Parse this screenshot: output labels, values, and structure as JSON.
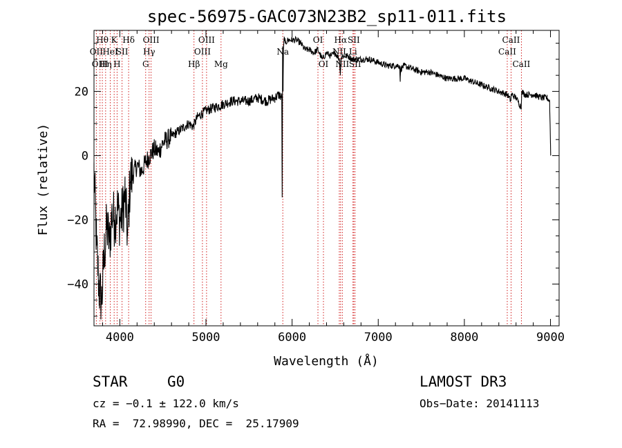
{
  "chart_data": {
    "type": "line",
    "title": "spec-56975-GAC073N23B2_sp11-011.fits",
    "xlabel": "Wavelength (Å)",
    "ylabel": "Flux (relative)",
    "xlim": [
      3700,
      9100
    ],
    "ylim": [
      -53,
      39
    ],
    "xticks": [
      4000,
      5000,
      6000,
      7000,
      8000,
      9000
    ],
    "xtick_labels": [
      "4000",
      "5000",
      "6000",
      "7000",
      "8000",
      "9000"
    ],
    "yticks": [
      -40,
      -20,
      0,
      20
    ],
    "ytick_labels": [
      "−40",
      "−20",
      "0",
      "20"
    ],
    "grid": false,
    "series": [
      {
        "name": "flux",
        "x": [
          3700,
          3730,
          3760,
          3790,
          3820,
          3850,
          3880,
          3910,
          3940,
          3970,
          4000,
          4030,
          4060,
          4090,
          4120,
          4150,
          4200,
          4250,
          4300,
          4350,
          4400,
          4450,
          4500,
          4600,
          4700,
          4800,
          4850,
          4900,
          5000,
          5100,
          5200,
          5300,
          5400,
          5500,
          5600,
          5700,
          5800,
          5850,
          5880,
          5885,
          5890,
          5895,
          5900,
          5910,
          5920,
          5950,
          6000,
          6050,
          6100,
          6150,
          6200,
          6250,
          6300,
          6350,
          6400,
          6450,
          6500,
          6550,
          6560,
          6563,
          6566,
          6580,
          6600,
          6650,
          6700,
          6800,
          6900,
          7000,
          7100,
          7200,
          7250,
          7255,
          7260,
          7300,
          7400,
          7500,
          7600,
          7700,
          7800,
          7900,
          8000,
          8100,
          8200,
          8300,
          8400,
          8500,
          8540,
          8545,
          8550,
          8600,
          8660,
          8665,
          8700,
          8800,
          8900,
          8960,
          8990,
          9000,
          9002
        ],
        "y": [
          -5,
          -28,
          -42,
          -45,
          -30,
          -22,
          -27,
          -18,
          -20,
          -16,
          -20,
          -18,
          -12,
          -25,
          -8,
          -6,
          -3,
          -5,
          -2,
          0,
          2,
          1,
          4,
          6,
          8,
          10,
          9,
          12,
          14,
          15,
          16,
          17,
          17,
          17,
          18,
          17,
          18,
          19,
          18,
          -13,
          34,
          20,
          33,
          37,
          35,
          36,
          36,
          36,
          35,
          33,
          33,
          32,
          33,
          30,
          32,
          31,
          32,
          30,
          25,
          27,
          30,
          31,
          31,
          31,
          30,
          30,
          30,
          29,
          28,
          28,
          28,
          23,
          27,
          28,
          27,
          26,
          26,
          25,
          24,
          24,
          24,
          23,
          22,
          21,
          20,
          19,
          17,
          19,
          19,
          18,
          15,
          20,
          19,
          19,
          18,
          18,
          17,
          4,
          0
        ]
      }
    ],
    "line_groups": [
      {
        "name": "absorption-set",
        "color": "#cc0000",
        "lines": [
          3727,
          3770,
          3797,
          3835,
          3889,
          3934,
          3968,
          4026,
          4102,
          4300,
          4340,
          4363,
          4861,
          4959,
          5007,
          5175,
          5892,
          6300,
          6364,
          6548,
          6563,
          6583,
          6707,
          6716,
          6731,
          8498,
          8542,
          8662
        ]
      }
    ],
    "line_labels": [
      {
        "text": "Hθ",
        "x": 3797,
        "row": 0
      },
      {
        "text": "K",
        "x": 3934,
        "row": 0
      },
      {
        "text": "Hδ",
        "x": 4102,
        "row": 0
      },
      {
        "text": "OIII",
        "x": 4363,
        "row": 0
      },
      {
        "text": "OIII",
        "x": 5007,
        "row": 0
      },
      {
        "text": "OI",
        "x": 6300,
        "row": 0
      },
      {
        "text": "Hα",
        "x": 6563,
        "row": 0
      },
      {
        "text": "SII",
        "x": 6716,
        "row": 0
      },
      {
        "text": "CaII",
        "x": 8542,
        "row": 0
      },
      {
        "text": "OII",
        "x": 3727,
        "row": 1
      },
      {
        "text": "HeI",
        "x": 3889,
        "row": 1
      },
      {
        "text": "SII",
        "x": 4026,
        "row": 1
      },
      {
        "text": "Hγ",
        "x": 4340,
        "row": 1
      },
      {
        "text": "OIII",
        "x": 4959,
        "row": 1
      },
      {
        "text": "Na",
        "x": 5892,
        "row": 1
      },
      {
        "text": "NII",
        "x": 6548,
        "row": 1
      },
      {
        "text": "Li",
        "x": 6707,
        "row": 1
      },
      {
        "text": "CaII",
        "x": 8498,
        "row": 1
      },
      {
        "text": "OIII",
        "x": 3770,
        "row": 2
      },
      {
        "text": "Hη",
        "x": 3835,
        "row": 2
      },
      {
        "text": "H",
        "x": 3968,
        "row": 2
      },
      {
        "text": "G",
        "x": 4300,
        "row": 2
      },
      {
        "text": "Hβ",
        "x": 4861,
        "row": 2
      },
      {
        "text": "Mg",
        "x": 5175,
        "row": 2
      },
      {
        "text": "OI",
        "x": 6364,
        "row": 2
      },
      {
        "text": "NII",
        "x": 6583,
        "row": 2
      },
      {
        "text": "SII",
        "x": 6731,
        "row": 2
      },
      {
        "text": "CaII",
        "x": 8662,
        "row": 2
      }
    ]
  },
  "info": {
    "object_class": "STAR",
    "subclass": "G0",
    "survey": "LAMOST DR3",
    "redshift": "cz = −0.1 ± 122.0 km/s",
    "obs_date": "Obs−Date: 20141113",
    "coordinates": "RA =  72.98990, DEC =  25.17909"
  }
}
